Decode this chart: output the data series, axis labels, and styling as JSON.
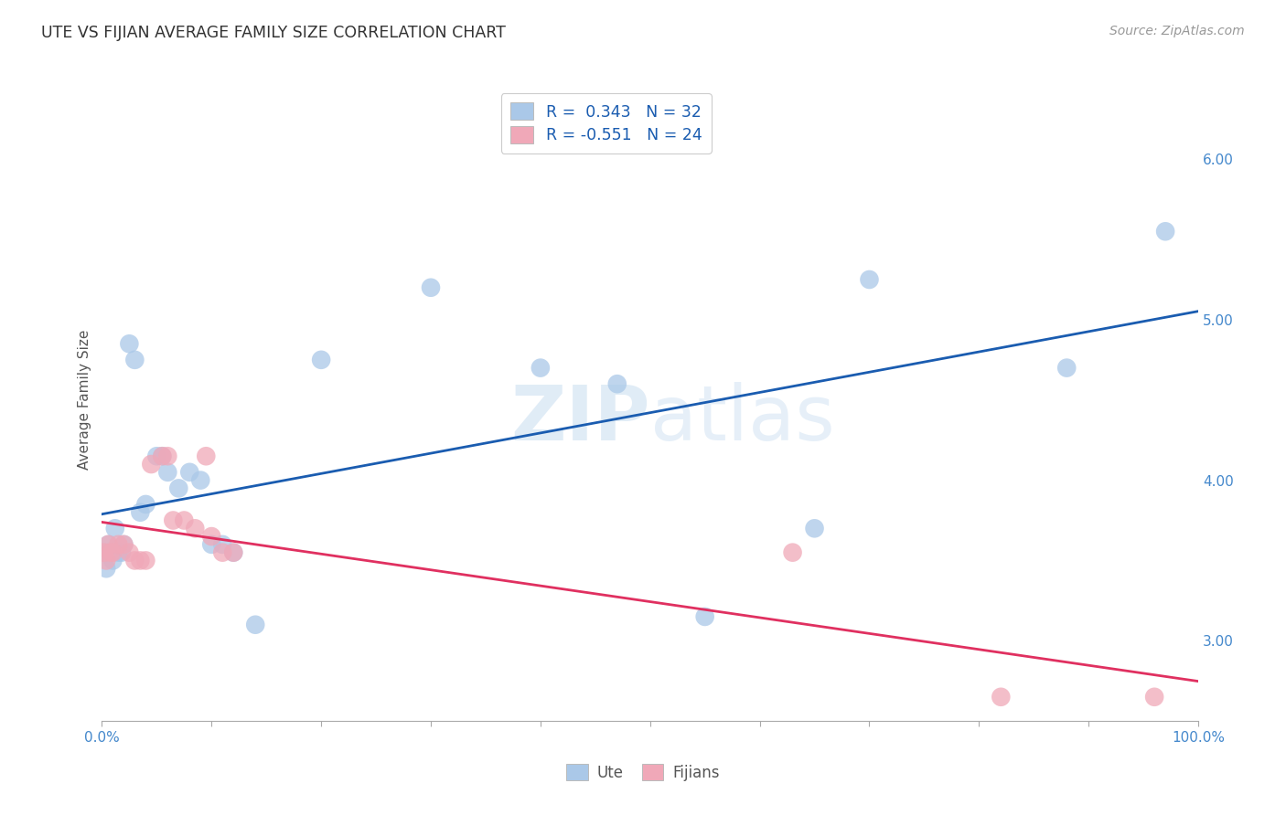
{
  "title": "UTE VS FIJIAN AVERAGE FAMILY SIZE CORRELATION CHART",
  "source": "Source: ZipAtlas.com",
  "ylabel": "Average Family Size",
  "yticks_right": [
    3.0,
    4.0,
    5.0,
    6.0
  ],
  "watermark_zip": "ZIP",
  "watermark_atlas": "atlas",
  "ute_color": "#aac8e8",
  "fijian_color": "#f0a8b8",
  "ute_line_color": "#1a5cb0",
  "fijian_line_color": "#e03060",
  "ute_R": 0.343,
  "ute_N": 32,
  "fijian_R": -0.551,
  "fijian_N": 24,
  "ute_x": [
    0.2,
    0.4,
    0.6,
    0.8,
    1.0,
    1.2,
    1.5,
    1.8,
    2.0,
    2.5,
    3.0,
    3.5,
    4.0,
    5.0,
    5.5,
    6.0,
    7.0,
    8.0,
    9.0,
    10.0,
    11.0,
    12.0,
    14.0,
    20.0,
    30.0,
    40.0,
    47.0,
    55.0,
    65.0,
    70.0,
    88.0,
    97.0
  ],
  "ute_y": [
    3.55,
    3.45,
    3.6,
    3.55,
    3.5,
    3.7,
    3.55,
    3.55,
    3.6,
    4.85,
    4.75,
    3.8,
    3.85,
    4.15,
    4.15,
    4.05,
    3.95,
    4.05,
    4.0,
    3.6,
    3.6,
    3.55,
    3.1,
    4.75,
    5.2,
    4.7,
    4.6,
    3.15,
    3.7,
    5.25,
    4.7,
    5.55
  ],
  "fijian_x": [
    0.2,
    0.4,
    0.6,
    0.8,
    1.0,
    1.5,
    2.0,
    2.5,
    3.0,
    3.5,
    4.5,
    5.5,
    6.5,
    7.5,
    8.5,
    9.5,
    10.0,
    11.0,
    12.0,
    4.0,
    6.0,
    63.0,
    82.0,
    96.0
  ],
  "fijian_y": [
    3.55,
    3.5,
    3.6,
    3.55,
    3.55,
    3.6,
    3.6,
    3.55,
    3.5,
    3.5,
    4.1,
    4.15,
    3.75,
    3.75,
    3.7,
    4.15,
    3.65,
    3.55,
    3.55,
    3.5,
    4.15,
    3.55,
    2.65,
    2.65
  ],
  "background_color": "#ffffff",
  "grid_color": "#cccccc",
  "legend_text_color": "#1a5cb0",
  "xmin": 0.0,
  "xmax": 100.0,
  "ymin": 2.5,
  "ymax": 6.5
}
